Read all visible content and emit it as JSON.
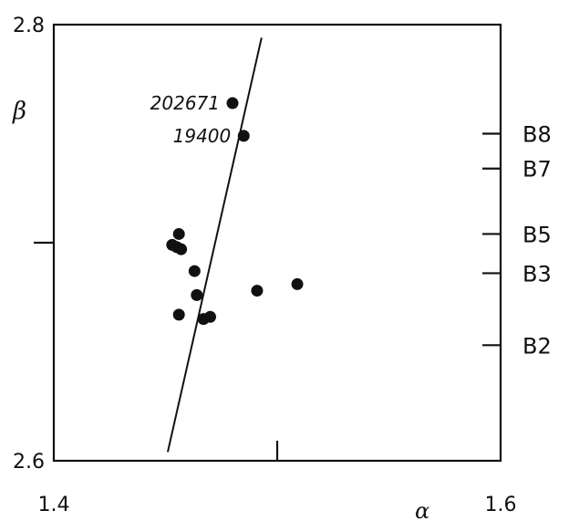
{
  "chart_data": {
    "type": "scatter",
    "xlabel": "α",
    "ylabel": "β",
    "xlim": [
      1.4,
      1.6
    ],
    "ylim": [
      2.6,
      2.8
    ],
    "x_ticks": [
      {
        "value": 1.4,
        "label": "1.4"
      },
      {
        "value": 1.5,
        "label": ""
      },
      {
        "value": 1.6,
        "label": "1.6"
      }
    ],
    "y_ticks": [
      {
        "value": 2.6,
        "label": "2.6"
      },
      {
        "value": 2.7,
        "label": ""
      },
      {
        "value": 2.8,
        "label": "2.8"
      }
    ],
    "spectral_types": [
      {
        "label": "B8",
        "beta": 2.75
      },
      {
        "label": "B7",
        "beta": 2.734
      },
      {
        "label": "B5",
        "beta": 2.704
      },
      {
        "label": "B3",
        "beta": 2.686
      },
      {
        "label": "B2",
        "beta": 2.653
      }
    ],
    "points": [
      {
        "x": 1.48,
        "y": 2.764,
        "label": "202671"
      },
      {
        "x": 1.485,
        "y": 2.749,
        "label": "19400"
      },
      {
        "x": 1.456,
        "y": 2.704
      },
      {
        "x": 1.453,
        "y": 2.699
      },
      {
        "x": 1.455,
        "y": 2.698
      },
      {
        "x": 1.457,
        "y": 2.697
      },
      {
        "x": 1.463,
        "y": 2.687
      },
      {
        "x": 1.464,
        "y": 2.676
      },
      {
        "x": 1.456,
        "y": 2.667
      },
      {
        "x": 1.467,
        "y": 2.665
      },
      {
        "x": 1.47,
        "y": 2.666
      },
      {
        "x": 1.491,
        "y": 2.678
      },
      {
        "x": 1.509,
        "y": 2.681
      }
    ],
    "line": [
      {
        "x": 1.451,
        "y": 2.604
      },
      {
        "x": 1.493,
        "y": 2.794
      }
    ],
    "grid": false
  }
}
